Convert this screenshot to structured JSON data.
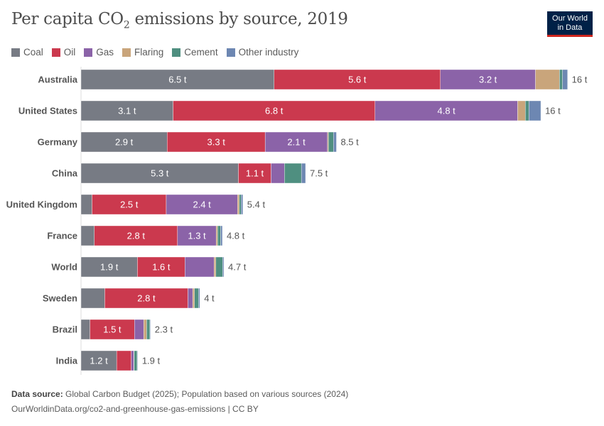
{
  "title": "Per capita CO",
  "title_sub": "2",
  "title_rest": " emissions by source, 2019",
  "logo": {
    "line1": "Our World",
    "line2": "in Data",
    "bg": "#002147",
    "accent": "#ce261e"
  },
  "footer": {
    "source_label": "Data source:",
    "source_text": " Global Carbon Budget (2025); Population based on various sources (2024)",
    "url_line": "OurWorldinData.org/co2-and-greenhouse-gas-emissions | CC BY"
  },
  "chart_data": {
    "type": "bar",
    "orientation": "horizontal",
    "stacked": true,
    "unit": "t",
    "legend_position": "top-left",
    "grid": false,
    "series": [
      {
        "name": "Coal",
        "color": "#777b84"
      },
      {
        "name": "Oil",
        "color": "#cb394e"
      },
      {
        "name": "Gas",
        "color": "#8b63a8"
      },
      {
        "name": "Flaring",
        "color": "#c9a57b"
      },
      {
        "name": "Cement",
        "color": "#4f8f80"
      },
      {
        "name": "Other industry",
        "color": "#6d87b2"
      }
    ],
    "categories": [
      "Australia",
      "United States",
      "Germany",
      "China",
      "United Kingdom",
      "France",
      "World",
      "Sweden",
      "Brazil",
      "India"
    ],
    "values": [
      [
        6.5,
        5.6,
        3.2,
        0.81,
        0.1,
        0.17
      ],
      [
        3.1,
        6.8,
        4.8,
        0.26,
        0.12,
        0.4
      ],
      [
        2.9,
        3.3,
        2.1,
        0.03,
        0.17,
        0.1
      ],
      [
        5.3,
        1.1,
        0.45,
        0.0,
        0.57,
        0.14
      ],
      [
        0.37,
        2.5,
        2.4,
        0.06,
        0.06,
        0.06
      ],
      [
        0.45,
        2.8,
        1.3,
        0.05,
        0.1,
        0.06
      ],
      [
        1.9,
        1.6,
        0.98,
        0.06,
        0.23,
        0.04
      ],
      [
        0.8,
        2.8,
        0.16,
        0.06,
        0.14,
        0.04
      ],
      [
        0.3,
        1.5,
        0.31,
        0.1,
        0.11,
        0.02
      ],
      [
        1.2,
        0.49,
        0.09,
        0.01,
        0.1,
        0.02
      ]
    ],
    "segment_labels": [
      [
        "6.5 t",
        "5.6 t",
        "3.2 t",
        "",
        "",
        ""
      ],
      [
        "3.1 t",
        "6.8 t",
        "4.8 t",
        "",
        "",
        ""
      ],
      [
        "2.9 t",
        "3.3 t",
        "2.1 t",
        "",
        "",
        ""
      ],
      [
        "5.3 t",
        "1.1 t",
        "",
        "",
        "",
        ""
      ],
      [
        "",
        "2.5 t",
        "2.4 t",
        "",
        "",
        ""
      ],
      [
        "",
        "2.8 t",
        "1.3 t",
        "",
        "",
        ""
      ],
      [
        "1.9 t",
        "1.6 t",
        "",
        "",
        "",
        ""
      ],
      [
        "",
        "2.8 t",
        "",
        "",
        "",
        ""
      ],
      [
        "",
        "1.5 t",
        "",
        "",
        "",
        ""
      ],
      [
        "1.2 t",
        "",
        "",
        "",
        "",
        ""
      ]
    ],
    "total_labels": [
      "16 t",
      "16 t",
      "8.5 t",
      "7.5 t",
      "5.4 t",
      "4.8 t",
      "4.7 t",
      "4 t",
      "2.3 t",
      "1.9 t"
    ]
  }
}
